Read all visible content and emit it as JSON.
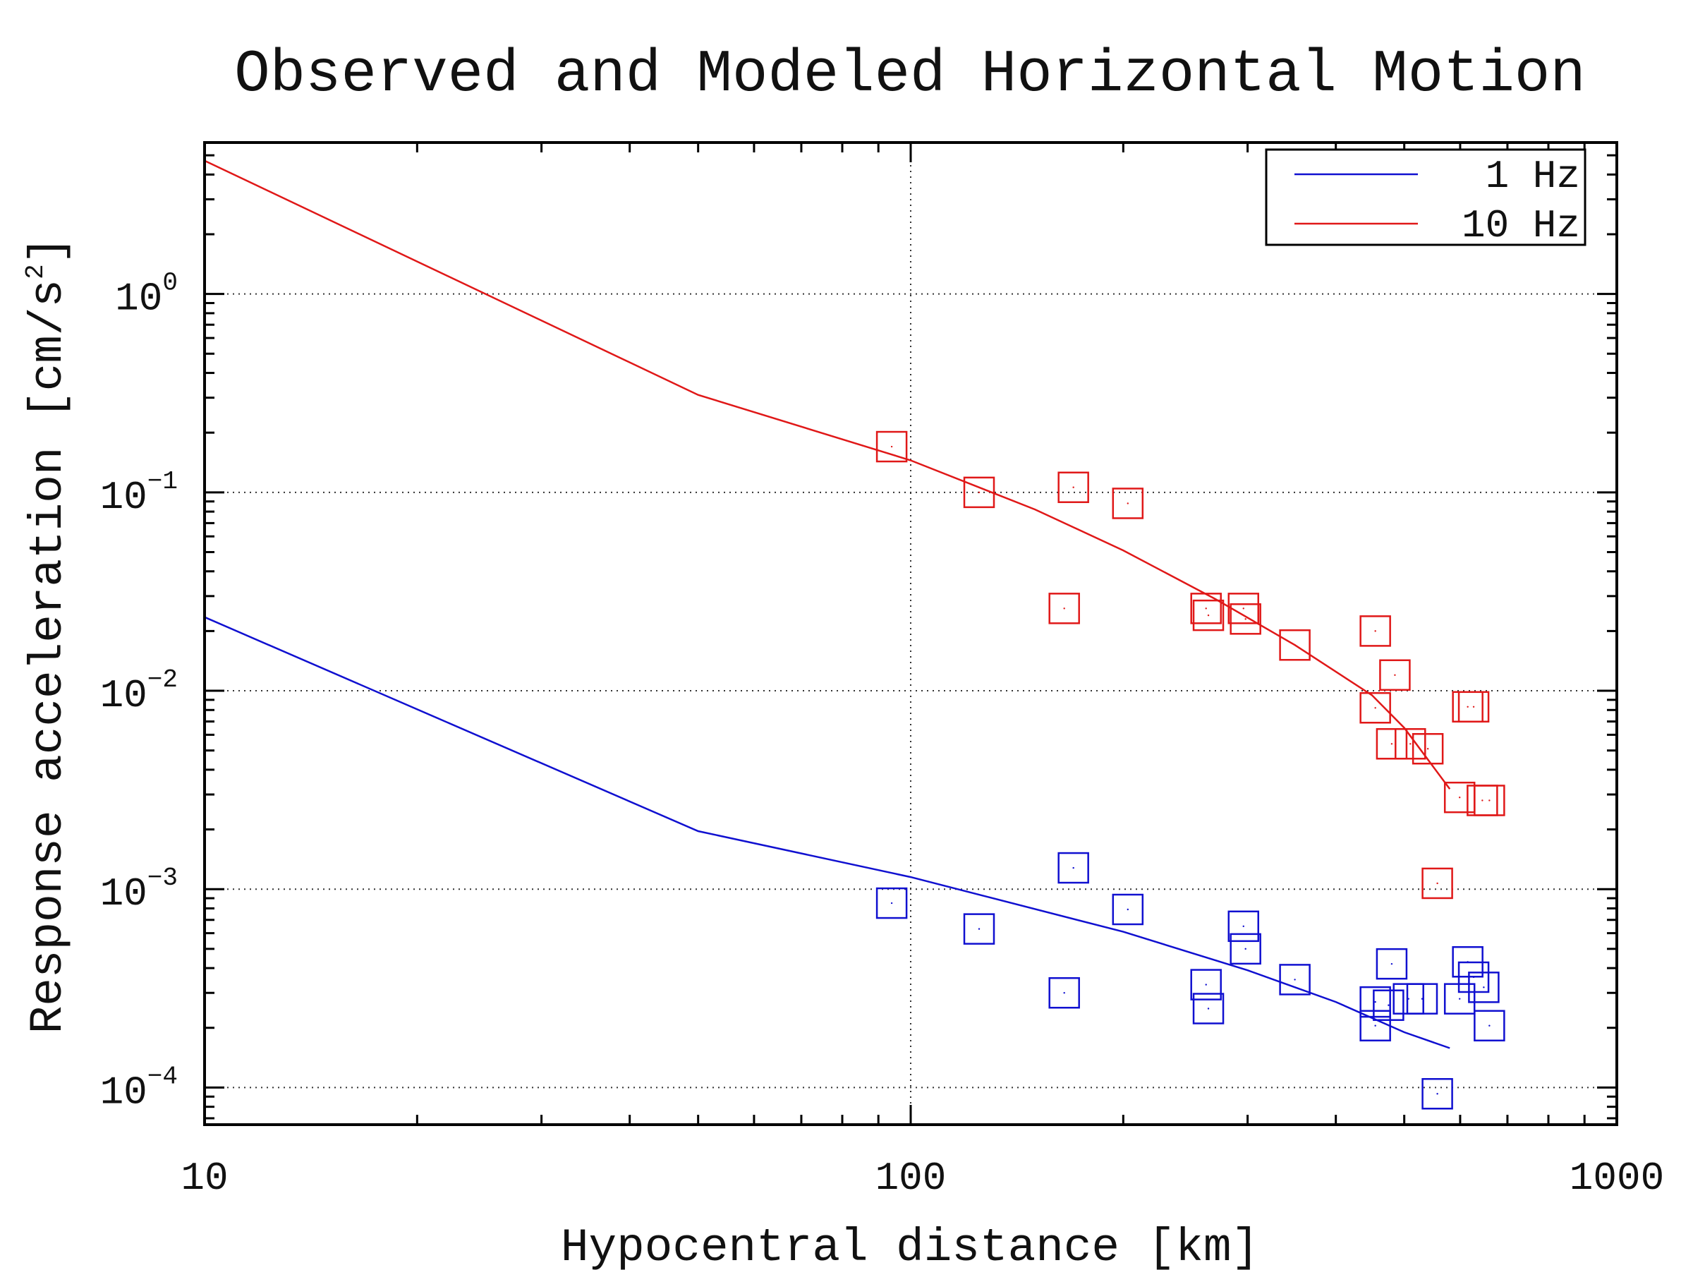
{
  "chart_data": {
    "type": "scatter",
    "title": "Observed and Modeled Horizontal Motion",
    "xlabel": "Hypocentral distance [km]",
    "ylabel": "Response acceleration [cm/s2]",
    "xscale": "log",
    "yscale": "log",
    "xlim": [
      10,
      1000
    ],
    "ylim": [
      6.5e-05,
      5.8
    ],
    "x_ticks": [
      {
        "value": 10,
        "label": "10"
      },
      {
        "value": 100,
        "label": "100"
      },
      {
        "value": 1000,
        "label": "1000"
      }
    ],
    "y_ticks": [
      {
        "value": 1,
        "base": "10",
        "exp": "0"
      },
      {
        "value": 0.1,
        "base": "10",
        "exp": "−1"
      },
      {
        "value": 0.01,
        "base": "10",
        "exp": "−2"
      },
      {
        "value": 0.001,
        "base": "10",
        "exp": "−3"
      },
      {
        "value": 0.0001,
        "base": "10",
        "exp": "−4"
      }
    ],
    "grid": true,
    "legend_position": "top-right",
    "legend": [
      {
        "label": "1 Hz",
        "color": "#1010d0"
      },
      {
        "label": "10 Hz",
        "color": "#e01818"
      }
    ],
    "series": [
      {
        "name": "1 Hz",
        "color": "#1010d0",
        "model_line": [
          [
            10,
            0.0235
          ],
          [
            50,
            0.00196
          ],
          [
            100,
            0.00115
          ],
          [
            200,
            0.00061
          ],
          [
            300,
            0.00039
          ],
          [
            400,
            0.00027
          ],
          [
            500,
            0.00019
          ],
          [
            580,
            0.000158
          ]
        ],
        "observed": [
          [
            94,
            0.00085
          ],
          [
            125,
            0.00063
          ],
          [
            165,
            0.0003
          ],
          [
            170,
            0.00128
          ],
          [
            203,
            0.00079
          ],
          [
            262,
            0.00033
          ],
          [
            264,
            0.00025
          ],
          [
            296,
            0.00065
          ],
          [
            298,
            0.0005
          ],
          [
            350,
            0.00035
          ],
          [
            455,
            0.00027
          ],
          [
            455,
            0.000205
          ],
          [
            480,
            0.00042
          ],
          [
            475,
            0.00026
          ],
          [
            507,
            0.00028
          ],
          [
            530,
            0.00028
          ],
          [
            557,
            9.3e-05
          ],
          [
            599,
            0.00028
          ],
          [
            615,
            0.00043
          ],
          [
            627,
            0.00036
          ],
          [
            648,
            0.00032
          ],
          [
            660,
            0.000205
          ]
        ]
      },
      {
        "name": "10 Hz",
        "color": "#e01818",
        "model_line": [
          [
            10,
            4.7
          ],
          [
            50,
            0.31
          ],
          [
            100,
            0.145
          ],
          [
            150,
            0.082
          ],
          [
            200,
            0.051
          ],
          [
            270,
            0.029
          ],
          [
            350,
            0.017
          ],
          [
            450,
            0.0095
          ],
          [
            500,
            0.0065
          ],
          [
            580,
            0.0032
          ]
        ],
        "observed": [
          [
            94,
            0.17
          ],
          [
            125,
            0.1
          ],
          [
            170,
            0.106
          ],
          [
            203,
            0.088
          ],
          [
            165,
            0.026
          ],
          [
            262,
            0.026
          ],
          [
            264,
            0.024
          ],
          [
            296,
            0.026
          ],
          [
            298,
            0.023
          ],
          [
            350,
            0.017
          ],
          [
            455,
            0.02
          ],
          [
            455,
            0.0082
          ],
          [
            485,
            0.012
          ],
          [
            480,
            0.0054
          ],
          [
            510,
            0.0054
          ],
          [
            540,
            0.0051
          ],
          [
            599,
            0.0029
          ],
          [
            615,
            0.0083
          ],
          [
            627,
            0.0083
          ],
          [
            645,
            0.0028
          ],
          [
            660,
            0.0028
          ],
          [
            557,
            0.00107
          ]
        ]
      }
    ]
  }
}
